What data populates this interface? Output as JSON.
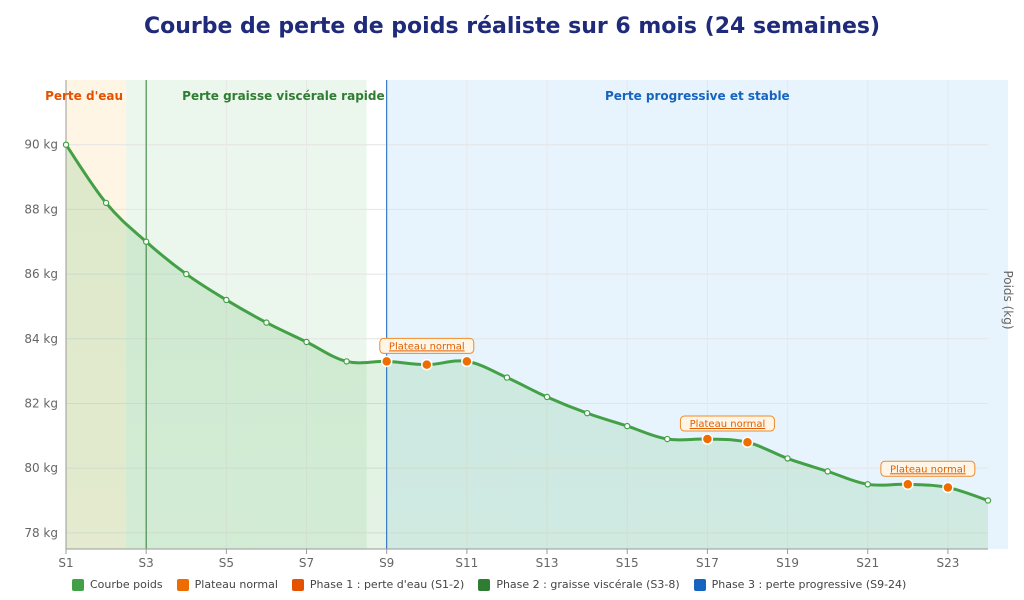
{
  "title": "Courbe de perte de poids réaliste sur 6 mois (24 semaines)",
  "chart_data": {
    "type": "area",
    "title": "Courbe de perte de poids réaliste sur 6 mois (24 semaines)",
    "ylabel": "Poids (kg)",
    "xlim": [
      1,
      24
    ],
    "ylim": [
      77.5,
      92
    ],
    "x_ticks": [
      "S1",
      "S3",
      "S5",
      "S7",
      "S9",
      "S11",
      "S13",
      "S15",
      "S17",
      "S19",
      "S21",
      "S23"
    ],
    "x_tick_values": [
      1,
      3,
      5,
      7,
      9,
      11,
      13,
      15,
      17,
      19,
      21,
      23
    ],
    "y_ticks": [
      "78 kg",
      "80 kg",
      "82 kg",
      "84 kg",
      "86 kg",
      "88 kg",
      "90 kg"
    ],
    "y_tick_values": [
      78,
      80,
      82,
      84,
      86,
      88,
      90
    ],
    "grid": true,
    "series": [
      {
        "name": "Courbe poids",
        "color": "#43a047",
        "x": [
          1,
          2,
          3,
          4,
          5,
          6,
          7,
          8,
          9,
          10,
          11,
          12,
          13,
          14,
          15,
          16,
          17,
          18,
          19,
          20,
          21,
          22,
          23,
          24
        ],
        "values": [
          90.0,
          88.2,
          87.0,
          86.0,
          85.2,
          84.5,
          83.9,
          83.3,
          83.3,
          83.2,
          83.3,
          82.8,
          82.2,
          81.7,
          81.3,
          80.9,
          80.9,
          80.8,
          80.3,
          79.9,
          79.5,
          79.5,
          79.4,
          79.0
        ]
      }
    ],
    "plateaus": {
      "name": "Plateau normal",
      "color": "#ef6c00",
      "label": "Plateau normal",
      "x": [
        9,
        10,
        11,
        17,
        18,
        22,
        23
      ],
      "values": [
        83.3,
        83.2,
        83.3,
        80.9,
        80.8,
        79.5,
        79.4
      ],
      "annotations": [
        {
          "label": "Plateau normal",
          "x": 10.0,
          "y": 83.3
        },
        {
          "label": "Plateau normal",
          "x": 17.5,
          "y": 80.9
        },
        {
          "label": "Plateau normal",
          "x": 22.5,
          "y": 79.5
        }
      ]
    },
    "phases": [
      {
        "label": "Perte d'eau",
        "legend": "Phase 1 : perte d'eau (S1-2)",
        "start": 1,
        "end": 2.5,
        "color": "#e65100",
        "fill": "#fff3e0"
      },
      {
        "label": "Perte graisse viscérale rapide",
        "legend": "Phase 2 : graisse viscérale (S3-8)",
        "start": 2.5,
        "end": 8.5,
        "color": "#2e7d32",
        "fill": "#e8f5e9"
      },
      {
        "label": "Perte progressive et stable",
        "legend": "Phase 3 : perte progressive (S9-24)",
        "start": 9,
        "end": 24.5,
        "color": "#1565c0",
        "fill": "#e3f2fd"
      }
    ],
    "phase_markers": [
      {
        "x": 3,
        "color": "#2e7d32"
      },
      {
        "x": 9,
        "color": "#1565c0"
      }
    ],
    "legend": {
      "position": "bottom",
      "items": [
        {
          "label": "Courbe poids",
          "color": "#43a047"
        },
        {
          "label": "Plateau normal",
          "color": "#ef6c00"
        },
        {
          "label": "Phase 1 : perte d'eau (S1-2)",
          "color": "#e65100"
        },
        {
          "label": "Phase 2 : graisse viscérale (S3-8)",
          "color": "#2e7d32"
        },
        {
          "label": "Phase 3 : perte progressive (S9-24)",
          "color": "#1565c0"
        }
      ]
    }
  }
}
